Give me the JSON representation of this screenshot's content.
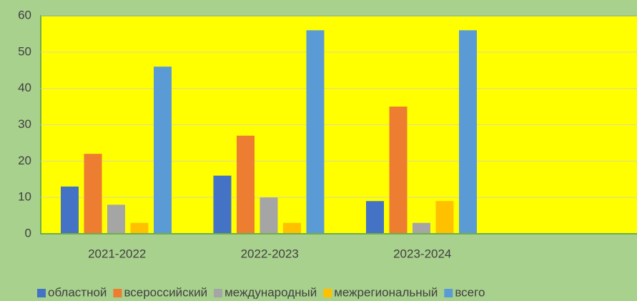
{
  "chart_data": {
    "type": "bar",
    "categories": [
      "2021-2022",
      "2022-2023",
      "2023-2024",
      null
    ],
    "series": [
      {
        "name": "областной",
        "color": "#4472c4",
        "values": [
          13,
          16,
          9,
          null
        ]
      },
      {
        "name": "всероссийский",
        "color": "#ed7d31",
        "values": [
          22,
          27,
          35,
          null
        ]
      },
      {
        "name": "международный",
        "color": "#a5a5a5",
        "values": [
          8,
          10,
          3,
          null
        ]
      },
      {
        "name": "межрегиональный",
        "color": "#ffc000",
        "values": [
          3,
          3,
          9,
          null
        ]
      },
      {
        "name": "всего",
        "color": "#5b9bd5",
        "values": [
          46,
          56,
          56,
          null
        ]
      }
    ],
    "ylim": [
      0,
      60
    ],
    "yticks": [
      0,
      10,
      20,
      30,
      40,
      50,
      60
    ],
    "grid": true,
    "legend": "bottom"
  }
}
